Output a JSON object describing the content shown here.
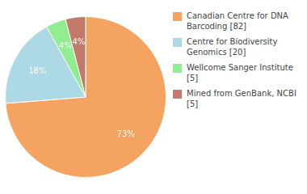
{
  "chart_data": {
    "type": "pie",
    "categories": [
      "Canadian Centre for DNA\nBarcoding [82]",
      "Centre for Biodiversity\nGenomics [20]",
      "Wellcome Sanger Institute [5]",
      "Mined from GenBank, NCBI [5]"
    ],
    "values": [
      73,
      18,
      4,
      4
    ],
    "value_labels": [
      "73%",
      "18%",
      "4%",
      "4%"
    ],
    "colors": [
      "#F4A460",
      "#ADD8E6",
      "#90EE90",
      "#C47A6A"
    ],
    "data_labels": true,
    "legend": "right"
  }
}
